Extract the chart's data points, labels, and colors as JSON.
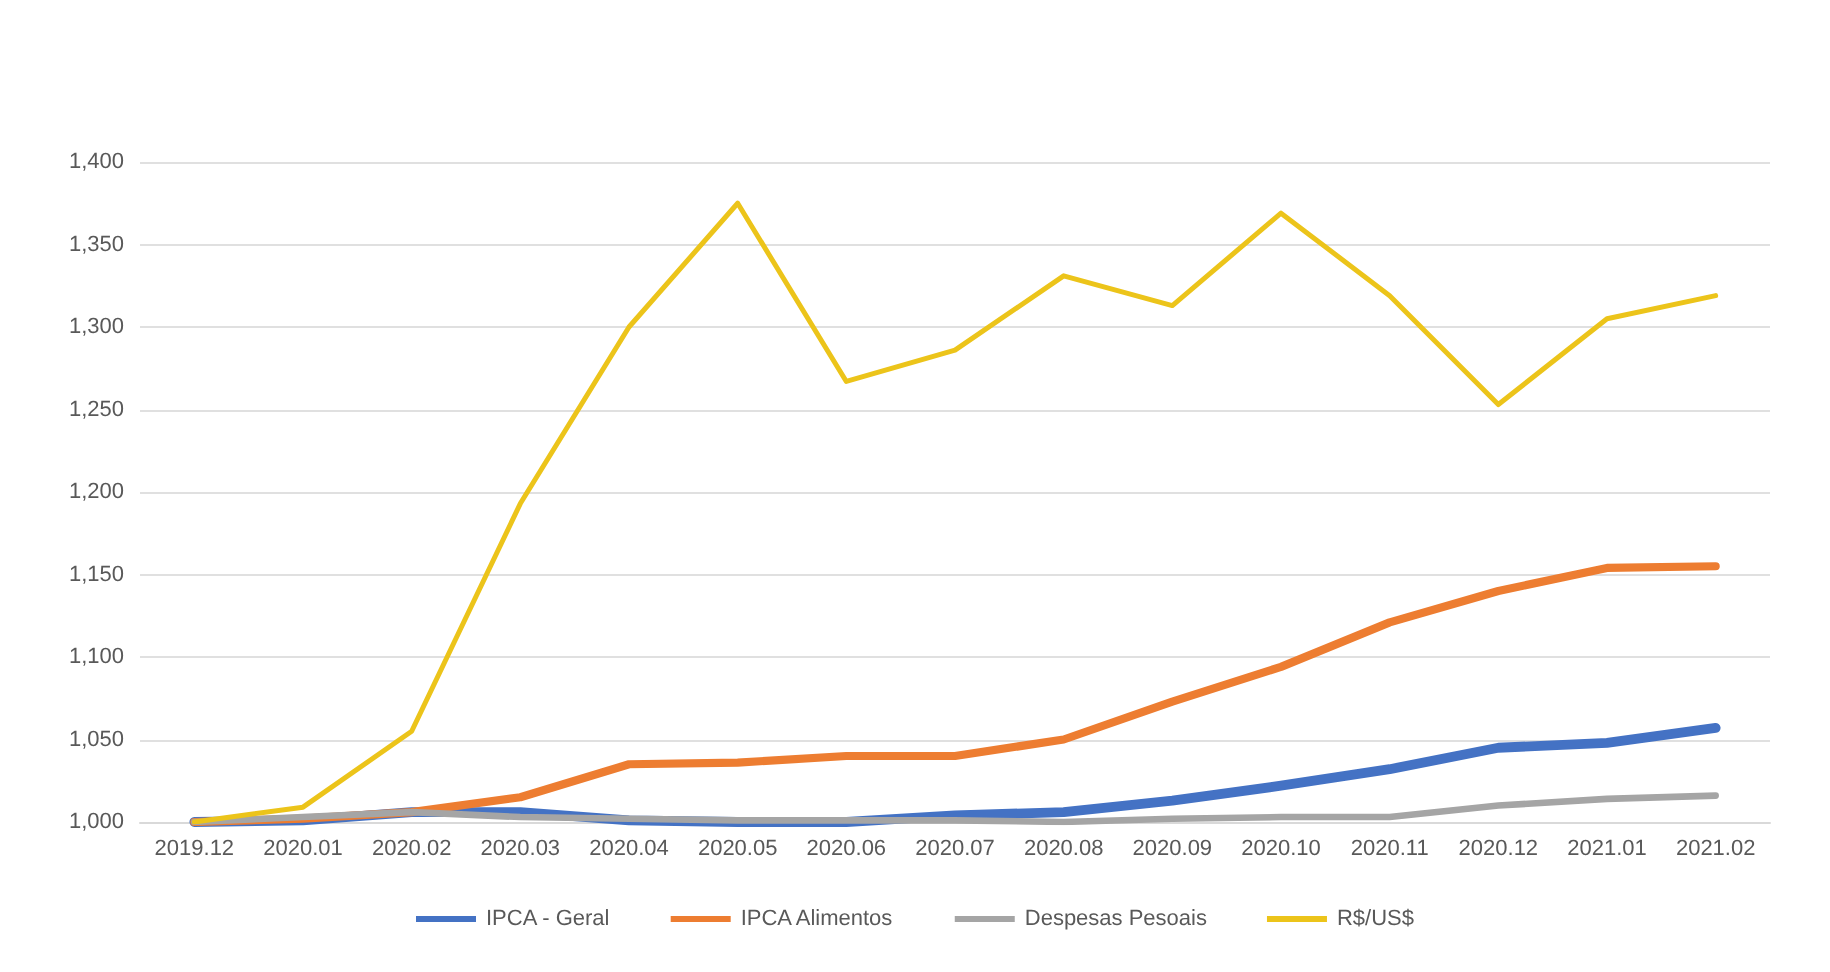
{
  "chart_data": {
    "type": "line",
    "categories": [
      "2019.12",
      "2020.01",
      "2020.02",
      "2020.03",
      "2020.04",
      "2020.05",
      "2020.06",
      "2020.07",
      "2020.08",
      "2020.09",
      "2020.10",
      "2020.11",
      "2020.12",
      "2021.01",
      "2021.02"
    ],
    "series": [
      {
        "name": "IPCA - Geral",
        "color": "#4472c4",
        "values": [
          1000,
          1001,
          1006,
          1006,
          1001,
          1000,
          1000,
          1004,
          1006,
          1013,
          1022,
          1032,
          1045,
          1048,
          1057
        ]
      },
      {
        "name": "IPCA Alimentos",
        "color": "#ed7d31",
        "values": [
          1000,
          1002,
          1006,
          1015,
          1035,
          1036,
          1040,
          1040,
          1050,
          1073,
          1094,
          1121,
          1140,
          1154,
          1155
        ]
      },
      {
        "name": "Despesas Pesoais",
        "color": "#a5a5a5",
        "values": [
          1000,
          1003,
          1006,
          1003,
          1002,
          1001,
          1001,
          1001,
          1000,
          1002,
          1003,
          1003,
          1010,
          1014,
          1016
        ]
      },
      {
        "name": "R$/US$",
        "color": "#ecc41a",
        "values": [
          1000,
          1009,
          1055,
          1193,
          1300,
          1375,
          1267,
          1286,
          1331,
          1313,
          1369,
          1319,
          1253,
          1305,
          1319
        ]
      }
    ],
    "ylim": [
      1000,
      1400
    ],
    "yticks": [
      {
        "value": 1000,
        "label": "1,000"
      },
      {
        "value": 1050,
        "label": "1,050"
      },
      {
        "value": 1100,
        "label": "1,100"
      },
      {
        "value": 1150,
        "label": "1,150"
      },
      {
        "value": 1200,
        "label": "1,200"
      },
      {
        "value": 1250,
        "label": "1,250"
      },
      {
        "value": 1300,
        "label": "1,300"
      },
      {
        "value": 1350,
        "label": "1,350"
      },
      {
        "value": 1400,
        "label": "1,400"
      }
    ],
    "grid": "y",
    "legend": "bottom",
    "marker": "none",
    "line_style": "solid"
  }
}
